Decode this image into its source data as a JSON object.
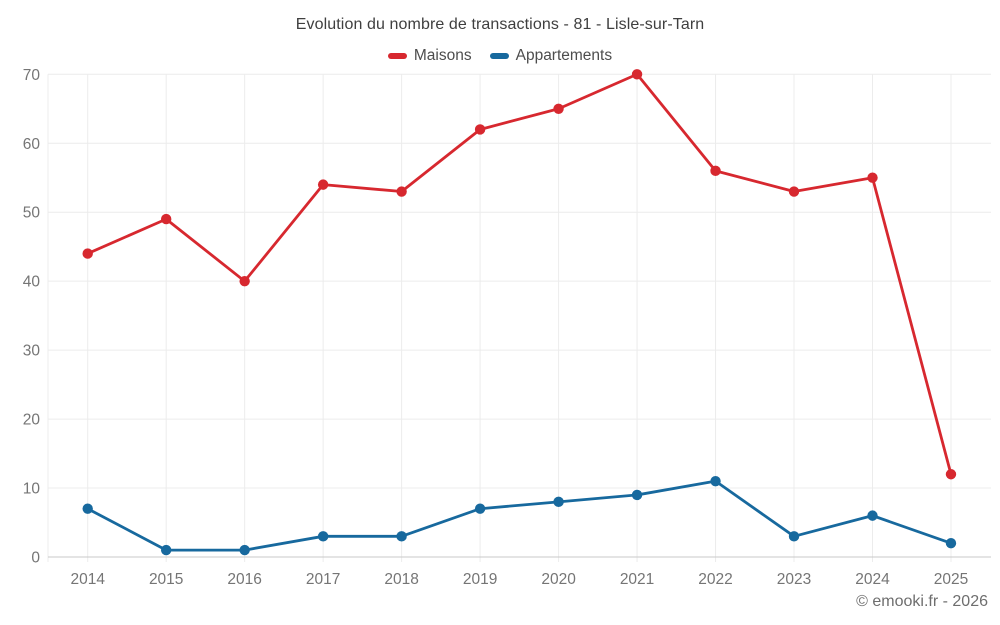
{
  "title": "Evolution du nombre de transactions - 81 - Lisle-sur-Tarn",
  "footer": "© emooki.fr - 2026",
  "chart_data": {
    "type": "line",
    "title": "Evolution du nombre de transactions - 81 - Lisle-sur-Tarn",
    "categories": [
      "2014",
      "2015",
      "2016",
      "2017",
      "2018",
      "2019",
      "2020",
      "2021",
      "2022",
      "2023",
      "2024",
      "2025"
    ],
    "series": [
      {
        "name": "Maisons",
        "color": "#d7282f",
        "values": [
          44,
          49,
          40,
          54,
          53,
          62,
          65,
          70,
          56,
          53,
          55,
          12
        ]
      },
      {
        "name": "Appartements",
        "color": "#17699e",
        "values": [
          7,
          1,
          1,
          3,
          3,
          7,
          8,
          9,
          11,
          3,
          6,
          2
        ]
      }
    ],
    "xlabel": "",
    "ylabel": "",
    "ylim": [
      0,
      70
    ],
    "y_ticks": [
      0,
      10,
      20,
      30,
      40,
      50,
      60,
      70
    ],
    "grid": true,
    "legend_position": "top",
    "colors": {
      "grid_line": "#ececec",
      "axis_line": "#c9c9c9",
      "tick_label": "#757575"
    }
  }
}
